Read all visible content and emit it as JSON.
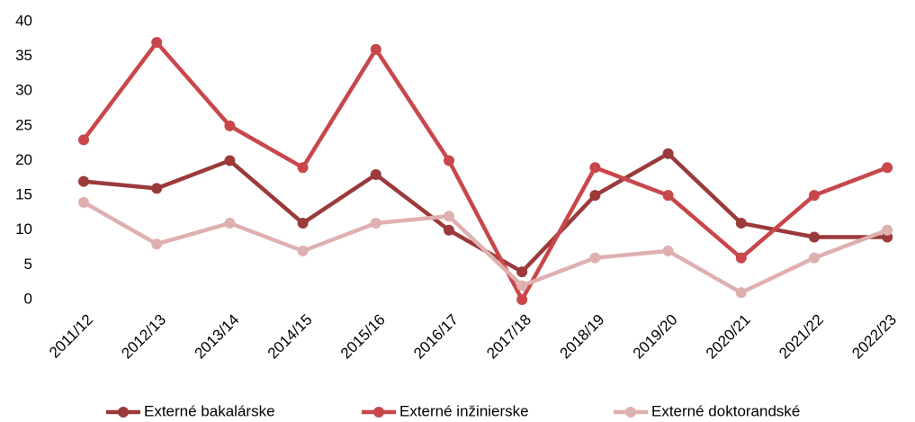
{
  "chart_data": {
    "type": "line",
    "categories": [
      "2011/12",
      "2012/13",
      "2013/14",
      "2014/15",
      "2015/16",
      "2016/17",
      "2017/18",
      "2018/19",
      "2019/20",
      "2020/21",
      "2021/22",
      "2022/23"
    ],
    "series": [
      {
        "name": "Externé bakalárske",
        "color": "#9b3a3a",
        "values": [
          17,
          16,
          20,
          11,
          18,
          10,
          4,
          15,
          21,
          11,
          9,
          9
        ]
      },
      {
        "name": "Externé inžinierske",
        "color": "#c8474b",
        "values": [
          23,
          37,
          25,
          19,
          36,
          20,
          0,
          19,
          15,
          6,
          15,
          19
        ]
      },
      {
        "name": "Externé doktorandské",
        "color": "#dfb0b0",
        "values": [
          14,
          8,
          11,
          7,
          11,
          12,
          2,
          6,
          7,
          1,
          6,
          10
        ]
      }
    ],
    "ylim": [
      0,
      40
    ],
    "yticks": [
      0,
      5,
      10,
      15,
      20,
      25,
      30,
      35,
      40
    ],
    "grid": false,
    "legend": "bottom"
  }
}
